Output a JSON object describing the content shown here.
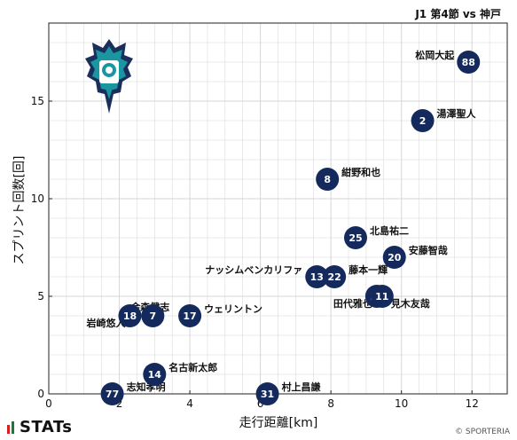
{
  "header": {
    "match_title": "J1 第4節 vs 神戸"
  },
  "footer": {
    "brand": "STATs",
    "copyright": "© SPORTERIA"
  },
  "team": {
    "emblem_icon": "avispa-fukuoka-emblem-icon"
  },
  "colors": {
    "marker": "#152a5c",
    "marker_text": "#ffffff",
    "grid": "#d6d6d6",
    "emblem_teal": "#1a96a0",
    "emblem_navy": "#1b2f5c"
  },
  "chart_data": {
    "type": "scatter",
    "title": "",
    "xlabel": "走行距離[km]",
    "ylabel": "スプリント回数[回]",
    "xlim": [
      0,
      13
    ],
    "ylim": [
      0,
      19
    ],
    "xticks": [
      0,
      2,
      4,
      6,
      8,
      10,
      12
    ],
    "yticks": [
      0,
      5,
      10,
      15
    ],
    "grid": true,
    "points": [
      {
        "number": "88",
        "name": "松岡大起",
        "x": 11.9,
        "y": 17,
        "label_pos": "left"
      },
      {
        "number": "2",
        "name": "湯澤聖人",
        "x": 10.6,
        "y": 14,
        "label_pos": "right"
      },
      {
        "number": "8",
        "name": "紺野和也",
        "x": 7.9,
        "y": 11,
        "label_pos": "right"
      },
      {
        "number": "25",
        "name": "北島祐二",
        "x": 8.7,
        "y": 8,
        "label_pos": "right"
      },
      {
        "number": "20",
        "name": "安藤智哉",
        "x": 9.8,
        "y": 7,
        "label_pos": "right"
      },
      {
        "number": "13",
        "name": "ナッシムベンカリファ",
        "x": 7.6,
        "y": 6,
        "label_pos": "left"
      },
      {
        "number": "22",
        "name": "藤本一輝",
        "x": 8.1,
        "y": 6,
        "label_pos": "right"
      },
      {
        "number": "37",
        "name": "田代雅也",
        "x": 9.3,
        "y": 5,
        "label_pos": "below-left"
      },
      {
        "number": "11",
        "name": "見木友哉",
        "x": 9.45,
        "y": 5,
        "label_pos": "below-right"
      },
      {
        "number": "18",
        "name": "岩崎悠人",
        "x": 2.3,
        "y": 4,
        "label_pos": "below-left"
      },
      {
        "number": "7",
        "name": "金森健志",
        "x": 2.95,
        "y": 4,
        "label_pos": "above"
      },
      {
        "number": "17",
        "name": "ウェリントン",
        "x": 4.0,
        "y": 4,
        "label_pos": "right"
      },
      {
        "number": "14",
        "name": "名古新太郎",
        "x": 3.0,
        "y": 1,
        "label_pos": "right"
      },
      {
        "number": "77",
        "name": "志知孝明",
        "x": 1.8,
        "y": 0,
        "label_pos": "right"
      },
      {
        "number": "31",
        "name": "村上昌謙",
        "x": 6.2,
        "y": 0,
        "label_pos": "right"
      }
    ]
  }
}
